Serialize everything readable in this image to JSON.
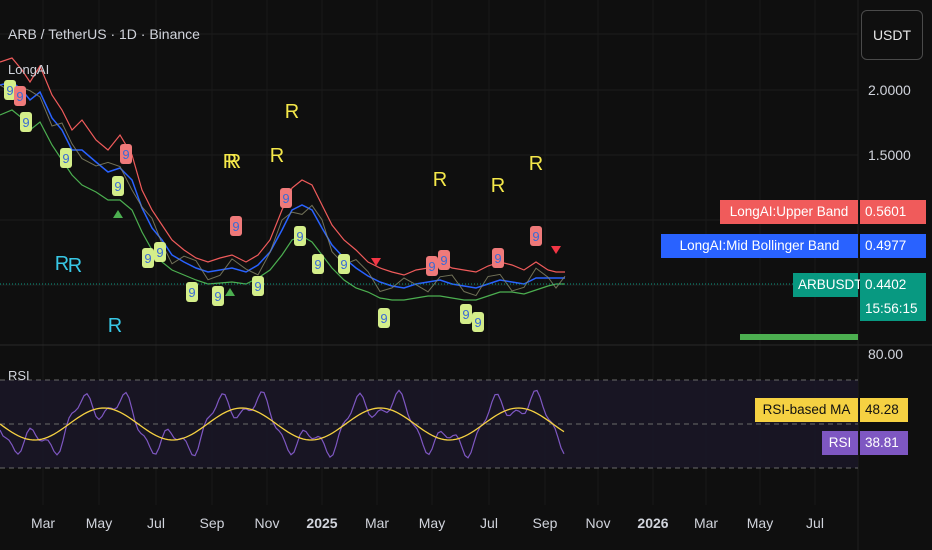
{
  "header": {
    "symbol_title": "ARB / TetherUS · 1D · Binance",
    "indicator_label": "LongAI",
    "currency_button": "USDT"
  },
  "price_axis": {
    "ticks": [
      "2.0000",
      "1.5000"
    ]
  },
  "rsi_axis": {
    "top_label": "80.00"
  },
  "legend_tags": [
    {
      "name": "LongAI:Upper Band",
      "value": "0.5601",
      "color": "#f05b5b"
    },
    {
      "name": "LongAI:Mid Bollinger Band",
      "value": "0.4977",
      "color": "#2962ff"
    },
    {
      "name": "ARBUSDT",
      "value": "0.4402",
      "color": "#089981"
    }
  ],
  "countdown": "15:56:15",
  "rsi_pane": {
    "title": "RSI",
    "tags": [
      {
        "name": "RSI-based MA",
        "value": "48.28",
        "color": "#f5d142"
      },
      {
        "name": "RSI",
        "value": "38.81",
        "color": "#7e57c2"
      }
    ]
  },
  "time_axis": [
    "Mar",
    "May",
    "Jul",
    "Sep",
    "Nov",
    "2025",
    "Mar",
    "May",
    "Jul",
    "Sep",
    "Nov",
    "2026",
    "Mar",
    "May",
    "Jul"
  ],
  "markers": {
    "r_letters": [
      "R",
      "R",
      "R",
      "R",
      "R",
      "R",
      "R",
      "R",
      "R",
      "R",
      "R"
    ],
    "nine_labels": [
      "9",
      "9",
      "9",
      "9",
      "9",
      "9",
      "9",
      "9",
      "9",
      "9",
      "9",
      "9",
      "9",
      "9",
      "9",
      "9",
      "9",
      "9",
      "9",
      "9",
      "9",
      "9",
      "9",
      "9",
      "9",
      "9"
    ]
  },
  "colors": {
    "background": "#0f0f0f",
    "upper_band": "#f05b5b",
    "mid_band": "#2962ff",
    "lower_band": "#4caf50",
    "rsi_line": "#7e57c2",
    "rsi_ma": "#f5d142",
    "r_yellow": "#f5e84a",
    "r_cyan": "#38c8e6",
    "nine_green_bg": "#d4ee8a",
    "nine_red_bg": "#ef7a7a"
  }
}
